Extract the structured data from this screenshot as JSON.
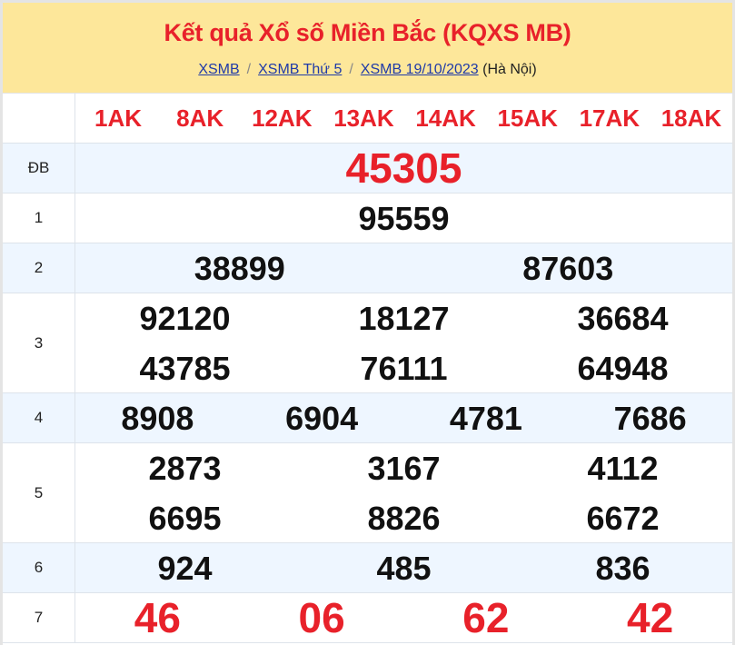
{
  "header": {
    "title": "Kết quả Xổ số Miền Bắc (KQXS MB)",
    "breadcrumb": [
      {
        "label": "XSMB"
      },
      {
        "label": "XSMB Thứ 5"
      },
      {
        "label": "XSMB 19/10/2023"
      }
    ],
    "region": "(Hà Nội)"
  },
  "codes": [
    "1AK",
    "8AK",
    "12AK",
    "13AK",
    "14AK",
    "15AK",
    "17AK",
    "18AK"
  ],
  "prizes": [
    {
      "label": "ĐB",
      "numbers": [
        "45305"
      ]
    },
    {
      "label": "1",
      "numbers": [
        "95559"
      ]
    },
    {
      "label": "2",
      "numbers": [
        "38899",
        "87603"
      ]
    },
    {
      "label": "3",
      "numbers": [
        "92120",
        "18127",
        "36684",
        "43785",
        "76111",
        "64948"
      ]
    },
    {
      "label": "4",
      "numbers": [
        "8908",
        "6904",
        "4781",
        "7686"
      ]
    },
    {
      "label": "5",
      "numbers": [
        "2873",
        "3167",
        "4112",
        "6695",
        "8826",
        "6672"
      ]
    },
    {
      "label": "6",
      "numbers": [
        "924",
        "485",
        "836"
      ]
    },
    {
      "label": "7",
      "numbers": [
        "46",
        "06",
        "62",
        "42"
      ]
    }
  ],
  "colors": {
    "accent": "#e8212a",
    "header_bg": "#fde79a",
    "alt_row": "#eef6ff"
  }
}
